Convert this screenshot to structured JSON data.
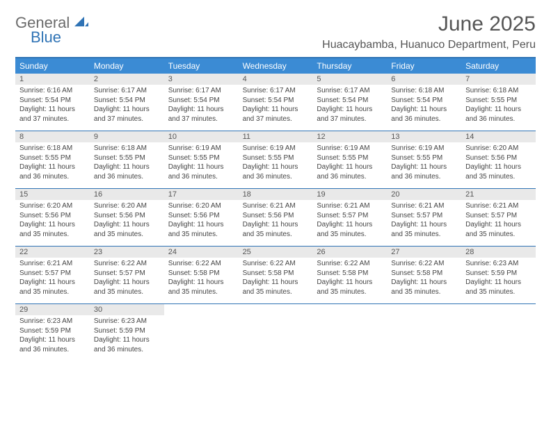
{
  "logo": {
    "text_general": "General",
    "text_blue": "Blue"
  },
  "header": {
    "month_title": "June 2025",
    "location": "Huacaybamba, Huanuco Department, Peru"
  },
  "colors": {
    "header_bg": "#3b8bd4",
    "border": "#2f73b5",
    "daynum_bg": "#e9e9e9",
    "text": "#444444",
    "title": "#555555"
  },
  "day_names": [
    "Sunday",
    "Monday",
    "Tuesday",
    "Wednesday",
    "Thursday",
    "Friday",
    "Saturday"
  ],
  "days": [
    {
      "n": "1",
      "sr": "Sunrise: 6:16 AM",
      "ss": "Sunset: 5:54 PM",
      "d1": "Daylight: 11 hours",
      "d2": "and 37 minutes."
    },
    {
      "n": "2",
      "sr": "Sunrise: 6:17 AM",
      "ss": "Sunset: 5:54 PM",
      "d1": "Daylight: 11 hours",
      "d2": "and 37 minutes."
    },
    {
      "n": "3",
      "sr": "Sunrise: 6:17 AM",
      "ss": "Sunset: 5:54 PM",
      "d1": "Daylight: 11 hours",
      "d2": "and 37 minutes."
    },
    {
      "n": "4",
      "sr": "Sunrise: 6:17 AM",
      "ss": "Sunset: 5:54 PM",
      "d1": "Daylight: 11 hours",
      "d2": "and 37 minutes."
    },
    {
      "n": "5",
      "sr": "Sunrise: 6:17 AM",
      "ss": "Sunset: 5:54 PM",
      "d1": "Daylight: 11 hours",
      "d2": "and 37 minutes."
    },
    {
      "n": "6",
      "sr": "Sunrise: 6:18 AM",
      "ss": "Sunset: 5:54 PM",
      "d1": "Daylight: 11 hours",
      "d2": "and 36 minutes."
    },
    {
      "n": "7",
      "sr": "Sunrise: 6:18 AM",
      "ss": "Sunset: 5:55 PM",
      "d1": "Daylight: 11 hours",
      "d2": "and 36 minutes."
    },
    {
      "n": "8",
      "sr": "Sunrise: 6:18 AM",
      "ss": "Sunset: 5:55 PM",
      "d1": "Daylight: 11 hours",
      "d2": "and 36 minutes."
    },
    {
      "n": "9",
      "sr": "Sunrise: 6:18 AM",
      "ss": "Sunset: 5:55 PM",
      "d1": "Daylight: 11 hours",
      "d2": "and 36 minutes."
    },
    {
      "n": "10",
      "sr": "Sunrise: 6:19 AM",
      "ss": "Sunset: 5:55 PM",
      "d1": "Daylight: 11 hours",
      "d2": "and 36 minutes."
    },
    {
      "n": "11",
      "sr": "Sunrise: 6:19 AM",
      "ss": "Sunset: 5:55 PM",
      "d1": "Daylight: 11 hours",
      "d2": "and 36 minutes."
    },
    {
      "n": "12",
      "sr": "Sunrise: 6:19 AM",
      "ss": "Sunset: 5:55 PM",
      "d1": "Daylight: 11 hours",
      "d2": "and 36 minutes."
    },
    {
      "n": "13",
      "sr": "Sunrise: 6:19 AM",
      "ss": "Sunset: 5:55 PM",
      "d1": "Daylight: 11 hours",
      "d2": "and 36 minutes."
    },
    {
      "n": "14",
      "sr": "Sunrise: 6:20 AM",
      "ss": "Sunset: 5:56 PM",
      "d1": "Daylight: 11 hours",
      "d2": "and 35 minutes."
    },
    {
      "n": "15",
      "sr": "Sunrise: 6:20 AM",
      "ss": "Sunset: 5:56 PM",
      "d1": "Daylight: 11 hours",
      "d2": "and 35 minutes."
    },
    {
      "n": "16",
      "sr": "Sunrise: 6:20 AM",
      "ss": "Sunset: 5:56 PM",
      "d1": "Daylight: 11 hours",
      "d2": "and 35 minutes."
    },
    {
      "n": "17",
      "sr": "Sunrise: 6:20 AM",
      "ss": "Sunset: 5:56 PM",
      "d1": "Daylight: 11 hours",
      "d2": "and 35 minutes."
    },
    {
      "n": "18",
      "sr": "Sunrise: 6:21 AM",
      "ss": "Sunset: 5:56 PM",
      "d1": "Daylight: 11 hours",
      "d2": "and 35 minutes."
    },
    {
      "n": "19",
      "sr": "Sunrise: 6:21 AM",
      "ss": "Sunset: 5:57 PM",
      "d1": "Daylight: 11 hours",
      "d2": "and 35 minutes."
    },
    {
      "n": "20",
      "sr": "Sunrise: 6:21 AM",
      "ss": "Sunset: 5:57 PM",
      "d1": "Daylight: 11 hours",
      "d2": "and 35 minutes."
    },
    {
      "n": "21",
      "sr": "Sunrise: 6:21 AM",
      "ss": "Sunset: 5:57 PM",
      "d1": "Daylight: 11 hours",
      "d2": "and 35 minutes."
    },
    {
      "n": "22",
      "sr": "Sunrise: 6:21 AM",
      "ss": "Sunset: 5:57 PM",
      "d1": "Daylight: 11 hours",
      "d2": "and 35 minutes."
    },
    {
      "n": "23",
      "sr": "Sunrise: 6:22 AM",
      "ss": "Sunset: 5:57 PM",
      "d1": "Daylight: 11 hours",
      "d2": "and 35 minutes."
    },
    {
      "n": "24",
      "sr": "Sunrise: 6:22 AM",
      "ss": "Sunset: 5:58 PM",
      "d1": "Daylight: 11 hours",
      "d2": "and 35 minutes."
    },
    {
      "n": "25",
      "sr": "Sunrise: 6:22 AM",
      "ss": "Sunset: 5:58 PM",
      "d1": "Daylight: 11 hours",
      "d2": "and 35 minutes."
    },
    {
      "n": "26",
      "sr": "Sunrise: 6:22 AM",
      "ss": "Sunset: 5:58 PM",
      "d1": "Daylight: 11 hours",
      "d2": "and 35 minutes."
    },
    {
      "n": "27",
      "sr": "Sunrise: 6:22 AM",
      "ss": "Sunset: 5:58 PM",
      "d1": "Daylight: 11 hours",
      "d2": "and 35 minutes."
    },
    {
      "n": "28",
      "sr": "Sunrise: 6:23 AM",
      "ss": "Sunset: 5:59 PM",
      "d1": "Daylight: 11 hours",
      "d2": "and 35 minutes."
    },
    {
      "n": "29",
      "sr": "Sunrise: 6:23 AM",
      "ss": "Sunset: 5:59 PM",
      "d1": "Daylight: 11 hours",
      "d2": "and 36 minutes."
    },
    {
      "n": "30",
      "sr": "Sunrise: 6:23 AM",
      "ss": "Sunset: 5:59 PM",
      "d1": "Daylight: 11 hours",
      "d2": "and 36 minutes."
    }
  ]
}
